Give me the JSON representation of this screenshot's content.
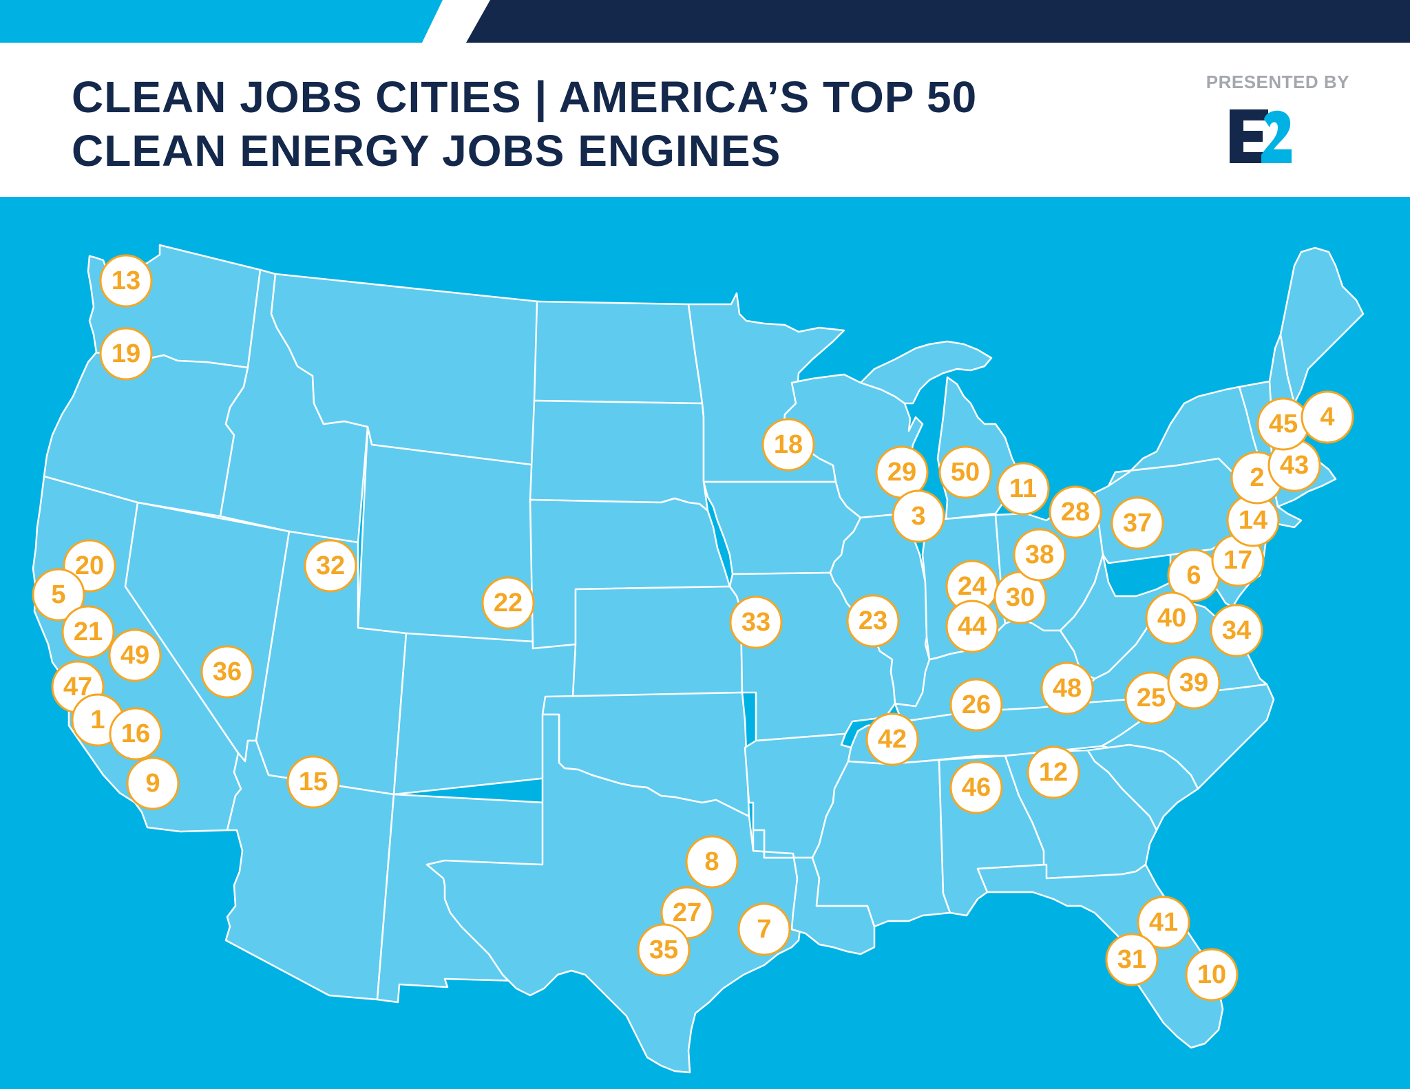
{
  "header": {
    "title_line1": "CLEAN JOBS CITIES | AMERICA’S TOP 50",
    "title_line2": "CLEAN ENERGY JOBS ENGINES",
    "presented_by": "PRESENTED BY",
    "logo_text": "E2"
  },
  "colors": {
    "ocean": "#00b2e3",
    "land": "#5fcbef",
    "navy": "#14284b",
    "marker": "#f5a623",
    "gray": "#a4a8ad"
  },
  "markers": [
    {
      "label": "13"
    },
    {
      "label": "19"
    },
    {
      "label": "20"
    },
    {
      "label": "5"
    },
    {
      "label": "21"
    },
    {
      "label": "49"
    },
    {
      "label": "47"
    },
    {
      "label": "1"
    },
    {
      "label": "16"
    },
    {
      "label": "9"
    },
    {
      "label": "36"
    },
    {
      "label": "32"
    },
    {
      "label": "22"
    },
    {
      "label": "15"
    },
    {
      "label": "18"
    },
    {
      "label": "33"
    },
    {
      "label": "8"
    },
    {
      "label": "27"
    },
    {
      "label": "35"
    },
    {
      "label": "7"
    },
    {
      "label": "29"
    },
    {
      "label": "50"
    },
    {
      "label": "3"
    },
    {
      "label": "11"
    },
    {
      "label": "23"
    },
    {
      "label": "24"
    },
    {
      "label": "44"
    },
    {
      "label": "30"
    },
    {
      "label": "38"
    },
    {
      "label": "28"
    },
    {
      "label": "37"
    },
    {
      "label": "26"
    },
    {
      "label": "42"
    },
    {
      "label": "48"
    },
    {
      "label": "46"
    },
    {
      "label": "12"
    },
    {
      "label": "25"
    },
    {
      "label": "39"
    },
    {
      "label": "41"
    },
    {
      "label": "31"
    },
    {
      "label": "10"
    },
    {
      "label": "6"
    },
    {
      "label": "40"
    },
    {
      "label": "34"
    },
    {
      "label": "17"
    },
    {
      "label": "14"
    },
    {
      "label": "2"
    },
    {
      "label": "43"
    },
    {
      "label": "45"
    },
    {
      "label": "4"
    }
  ]
}
